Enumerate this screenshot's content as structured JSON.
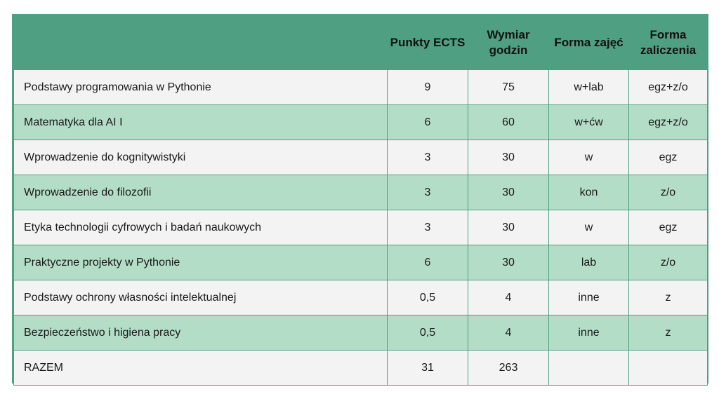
{
  "table": {
    "headers": {
      "name": "",
      "ects": "Punkty ECTS",
      "hours": "Wymiar godzin",
      "form": "Forma zajęć",
      "credit": "Forma zaliczenia"
    },
    "rows": [
      {
        "name": "Podstawy programowania w Pythonie",
        "ects": "9",
        "hours": "75",
        "form": "w+lab",
        "credit": "egz+z/o"
      },
      {
        "name": "Matematyka dla AI I",
        "ects": "6",
        "hours": "60",
        "form": "w+ćw",
        "credit": "egz+z/o"
      },
      {
        "name": "Wprowadzenie do kognitywistyki",
        "ects": "3",
        "hours": "30",
        "form": "w",
        "credit": "egz"
      },
      {
        "name": "Wprowadzenie do filozofii",
        "ects": "3",
        "hours": "30",
        "form": "kon",
        "credit": "z/o"
      },
      {
        "name": "Etyka technologii cyfrowych i badań naukowych",
        "ects": "3",
        "hours": "30",
        "form": "w",
        "credit": "egz"
      },
      {
        "name": "Praktyczne projekty w Pythonie",
        "ects": "6",
        "hours": "30",
        "form": "lab",
        "credit": "z/o"
      },
      {
        "name": "Podstawy ochrony własności intelektualnej",
        "ects": "0,5",
        "hours": "4",
        "form": "inne",
        "credit": "z"
      },
      {
        "name": "Bezpieczeństwo i higiena pracy",
        "ects": "0,5",
        "hours": "4",
        "form": "inne",
        "credit": "z"
      }
    ],
    "total": {
      "name": "RAZEM",
      "ects": "31",
      "hours": "263",
      "form": "",
      "credit": ""
    }
  },
  "colors": {
    "header_bg": "#4fa083",
    "row_light": "#f3f3f3",
    "row_green": "#b4ddc7",
    "border": "#4fa083"
  }
}
